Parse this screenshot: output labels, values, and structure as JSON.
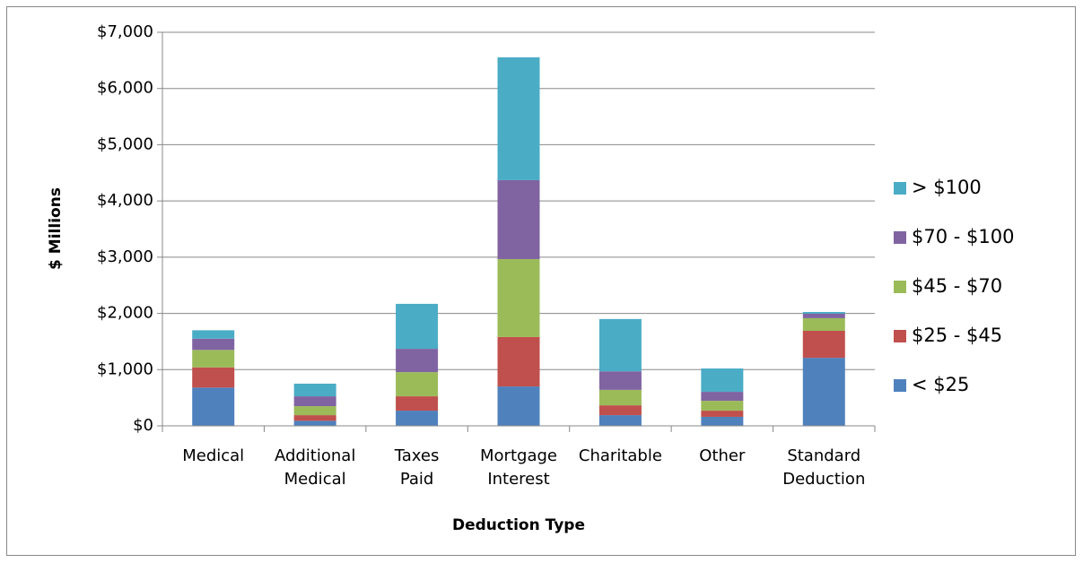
{
  "chart_data": {
    "type": "stacked-bar",
    "y_axis_label": "$ Millions",
    "x_axis_label": "Deduction Type",
    "categories": [
      "Medical",
      "Additional Medical",
      "Taxes Paid",
      "Mortgage Interest",
      "Charitable",
      "Other",
      "Standard Deduction"
    ],
    "series": [
      {
        "name": "< $25",
        "color": "#4f81bd",
        "values": [
          680,
          90,
          270,
          700,
          190,
          160,
          1210
        ]
      },
      {
        "name": "$25 - $45",
        "color": "#c0504d",
        "values": [
          360,
          100,
          255,
          880,
          175,
          110,
          480
        ]
      },
      {
        "name": "$45 - $70",
        "color": "#9bbb59",
        "values": [
          310,
          160,
          430,
          1385,
          275,
          175,
          225
        ]
      },
      {
        "name": "$70 - $100",
        "color": "#8064a2",
        "values": [
          200,
          175,
          415,
          1405,
          330,
          160,
          80
        ]
      },
      {
        "name": "> $100",
        "color": "#4bacc6",
        "values": [
          150,
          225,
          800,
          2185,
          930,
          415,
          30
        ]
      }
    ],
    "ylim": [
      0,
      7000
    ],
    "yticks": [
      {
        "value": 0,
        "label": "$0"
      },
      {
        "value": 1000,
        "label": "$1,000"
      },
      {
        "value": 2000,
        "label": "$2,000"
      },
      {
        "value": 3000,
        "label": "$3,000"
      },
      {
        "value": 4000,
        "label": "$4,000"
      },
      {
        "value": 5000,
        "label": "$5,000"
      },
      {
        "value": 6000,
        "label": "$6,000"
      },
      {
        "value": 7000,
        "label": "$7,000"
      }
    ],
    "grid": true,
    "legend": "right"
  }
}
